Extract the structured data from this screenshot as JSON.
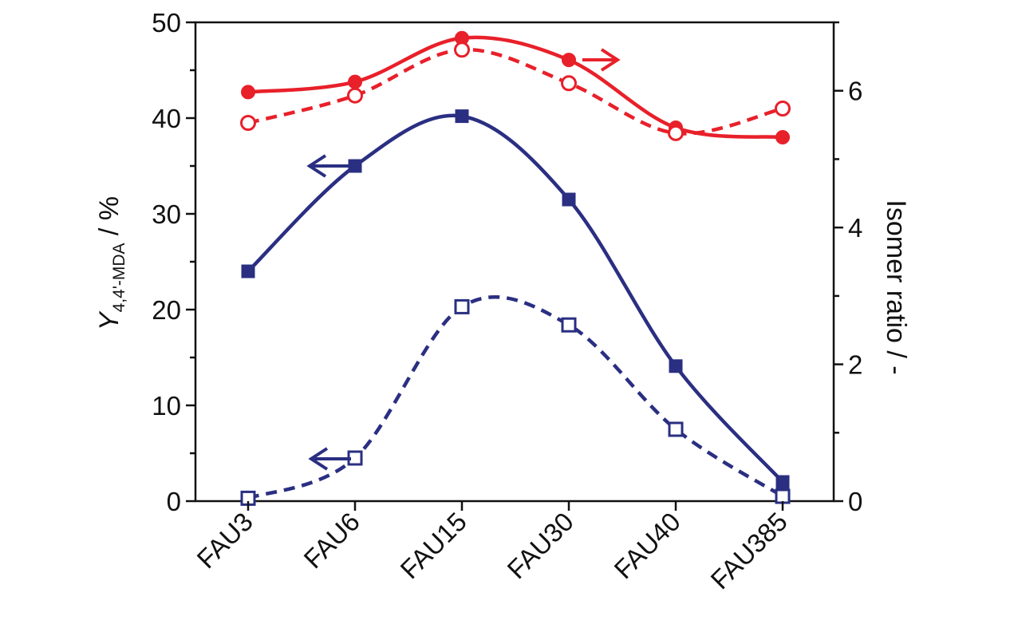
{
  "chart_data": {
    "type": "line",
    "categories": [
      "FAU3",
      "FAU6",
      "FAU15",
      "FAU30",
      "FAU40",
      "FAU385"
    ],
    "y_left": {
      "label_main": "Y",
      "label_sub": "4,4'-MDA",
      "label_unit": " / %",
      "lim": [
        0,
        50
      ],
      "ticks": [
        0,
        10,
        20,
        30,
        40,
        50
      ]
    },
    "y_right": {
      "label": "Isomer ratio / -",
      "lim": [
        0,
        7
      ],
      "ticks": [
        0,
        2,
        4,
        6
      ]
    },
    "series": [
      {
        "axis": "left",
        "style": "solid",
        "marker": "square-filled",
        "color": "#2a2f82",
        "values": [
          24.0,
          35.0,
          40.2,
          31.5,
          14.1,
          2.0
        ]
      },
      {
        "axis": "left",
        "style": "dashed",
        "marker": "square-open",
        "color": "#2a2f82",
        "values": [
          0.3,
          4.5,
          20.3,
          18.4,
          7.5,
          0.5
        ]
      },
      {
        "axis": "right",
        "style": "solid",
        "marker": "circle-filled",
        "color": "#e8202a",
        "values": [
          5.98,
          6.13,
          6.77,
          6.45,
          5.46,
          5.32
        ]
      },
      {
        "axis": "right",
        "style": "dashed",
        "marker": "circle-open",
        "color": "#e8202a",
        "values": [
          5.53,
          5.93,
          6.6,
          6.11,
          5.38,
          5.74
        ]
      }
    ],
    "annotations": [
      {
        "type": "arrow",
        "direction": "right",
        "color": "#e8202a",
        "near": "FAU30 solid red"
      },
      {
        "type": "arrow",
        "direction": "left",
        "color": "#2a2f82",
        "near": "FAU6 solid blue"
      },
      {
        "type": "arrow",
        "direction": "left",
        "color": "#2a2f82",
        "near": "FAU6 dashed blue"
      }
    ]
  }
}
